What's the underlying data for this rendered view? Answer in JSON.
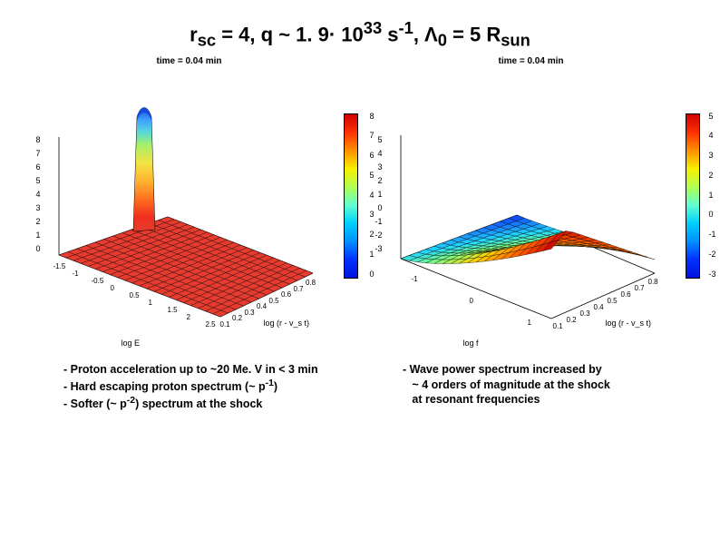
{
  "title": {
    "prefix": "r",
    "sub1": "sc",
    "part2": " = 4,  q ~ 1. 9· 10",
    "sup1": "33",
    "part3": " s",
    "sup2": "-1",
    "part4": ", Λ",
    "sub2": "0",
    "part5": " =  5 R",
    "sub3": "sun"
  },
  "plot_left": {
    "title": "time =   0.04 min",
    "colorbar": {
      "gradient": "linear-gradient(to top,#0013de,#0030ff,#0090ff,#00d0ff,#60ffd0,#b0ff50,#f8f000,#ff9000,#ff3000,#d00000)",
      "ticks": [
        "8",
        "7",
        "6",
        "5",
        "4",
        "3",
        "2",
        "1",
        "0"
      ]
    },
    "z_ticks": [
      "8",
      "7",
      "6",
      "5",
      "4",
      "3",
      "2",
      "1",
      "0"
    ],
    "surface_color": "#e63b2e",
    "peak_colors": [
      "#174adf",
      "#2a6bff",
      "#3ea0ff",
      "#5bd9d9",
      "#a4f06a",
      "#f3e342",
      "#ffb030",
      "#ff6a1e",
      "#ef2f1f",
      "#d40505"
    ],
    "mesh_color": "#000000",
    "x_label": "log E",
    "y_label": "log (r - v_s t)",
    "x_ticks": [
      "-1.5",
      "-1",
      "-0.5",
      "0",
      "0.5",
      "1",
      "1.5",
      "2",
      "2.5"
    ],
    "y_ticks": [
      "0.8",
      "0.7",
      "0.6",
      "0.5",
      "0.4",
      "0.3",
      "0.2",
      "0.1"
    ]
  },
  "plot_right": {
    "title": "time =   0.04 min",
    "colorbar": {
      "gradient": "linear-gradient(to top,#0013de,#0030ff,#0090ff,#00d0ff,#60ffd0,#b0ff50,#f8f000,#ff9000,#ff3000,#d00000)",
      "ticks": [
        "5",
        "4",
        "3",
        "2",
        "1",
        "0",
        "-1",
        "-2",
        "-3"
      ]
    },
    "z_ticks": [
      "5",
      "4",
      "3",
      "2",
      "1",
      "0",
      "-1",
      "-2",
      "-3"
    ],
    "surface_gradient": "linear-gradient(135deg,#d00000 0%,#ff5a00 20%,#ffd400 45%,#80ff80 65%,#20d8ff 80%,#103aff 100%)",
    "mesh_color": "#000000",
    "x_label": "log f",
    "y_label": "log (r - v_s t)",
    "x_ticks": [
      "-1",
      "0",
      "1"
    ],
    "y_ticks": [
      "0.8",
      "0.7",
      "0.6",
      "0.5",
      "0.4",
      "0.3",
      "0.2",
      "0.1"
    ]
  },
  "caption_left": {
    "l1a": "- Proton acceleration up to ~20 Me. V in < 3 min",
    "l2a": "- Hard escaping proton spectrum (~ p",
    "l2exp": "-1",
    "l2b": ")",
    "l3a": "- Softer (~ p",
    "l3exp": "-2",
    "l3b": ") spectrum at the shock"
  },
  "caption_right": {
    "l1": "- Wave power spectrum increased by",
    "l2": "   ~ 4 orders of magnitude at the shock",
    "l3": "   at resonant frequencies"
  },
  "colors": {
    "background": "#ffffff",
    "text": "#000000"
  }
}
